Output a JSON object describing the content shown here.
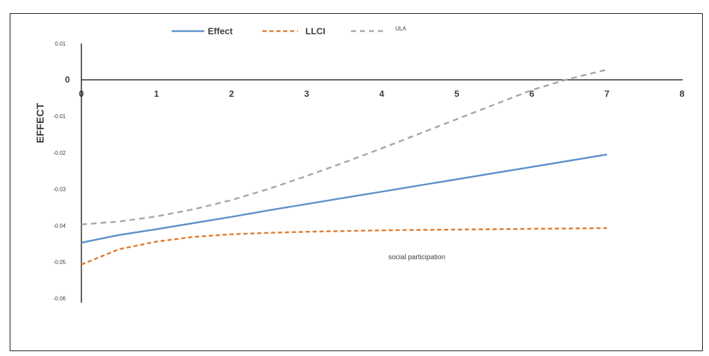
{
  "chart_data": {
    "type": "line",
    "title": "",
    "xlabel": "",
    "ylabel": "EFFECT",
    "annotation": "social participation",
    "x_ticks": [
      "0",
      "1",
      "2",
      "3",
      "4",
      "5",
      "6",
      "7",
      "8"
    ],
    "y_ticks": [
      "0.01",
      "0",
      "-0.01",
      "-0.02",
      "-0.03",
      "-0.04",
      "-0.05",
      "-0.06"
    ],
    "xlim": [
      0,
      8
    ],
    "ylim": [
      -0.06,
      0.01
    ],
    "grid": false,
    "legend_position": "top",
    "x": [
      0,
      0.5,
      1,
      1.5,
      2,
      2.5,
      3,
      3.5,
      4,
      4.5,
      5,
      5.5,
      6,
      6.5,
      7
    ],
    "series": [
      {
        "name": "Effect",
        "color": "#5b8fc7",
        "dash": "solid",
        "values": [
          -0.0447,
          -0.0426,
          -0.041,
          -0.0393,
          -0.0376,
          -0.0358,
          -0.0341,
          -0.0324,
          -0.0307,
          -0.029,
          -0.0273,
          -0.0256,
          -0.0239,
          -0.0222,
          -0.0205
        ]
      },
      {
        "name": "LLCI",
        "color": "#e07b2e",
        "dash": "dashed",
        "values": [
          -0.0507,
          -0.0465,
          -0.0444,
          -0.0431,
          -0.0424,
          -0.042,
          -0.0417,
          -0.0415,
          -0.0413,
          -0.0412,
          -0.0411,
          -0.041,
          -0.0409,
          -0.0408,
          -0.0407
        ]
      },
      {
        "name": "ULA",
        "color": "#a6a6a6",
        "dash": "dashed",
        "values": [
          -0.0397,
          -0.0389,
          -0.0375,
          -0.0355,
          -0.033,
          -0.0299,
          -0.0264,
          -0.0227,
          -0.0188,
          -0.0148,
          -0.0108,
          -0.0068,
          -0.0028,
          0.0003,
          0.0028
        ]
      }
    ]
  }
}
